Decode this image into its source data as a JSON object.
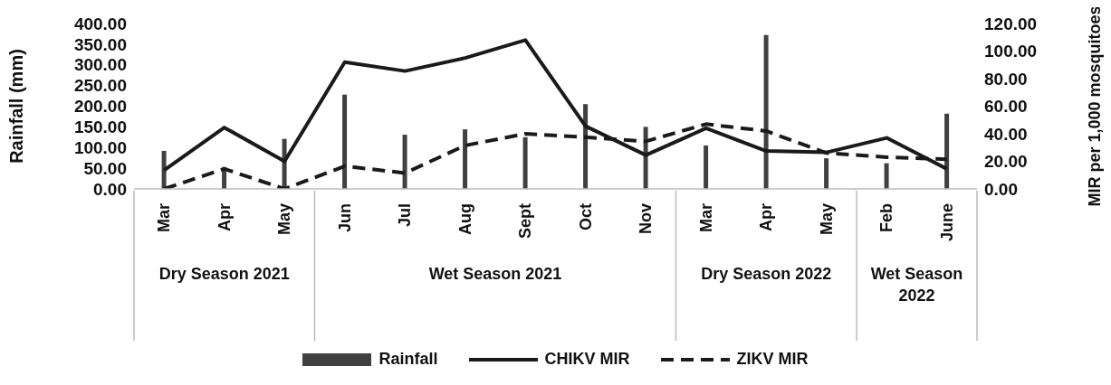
{
  "chart_data": {
    "type": "bar",
    "ylabel": "Rainfall (mm)",
    "y2label": "MIR per 1,000 mosquitoes",
    "categories": [
      "Mar",
      "Apr",
      "May",
      "Jun",
      "Jul",
      "Aug",
      "Sept",
      "Oct",
      "Nov",
      "Mar",
      "Apr",
      "May",
      "Feb",
      "June"
    ],
    "annotations": [
      "Dry Season 2021",
      "Wet Season 2021",
      "Dry Season 2022",
      "Wet Season 2022"
    ],
    "series": [
      {
        "name": "Rainfall",
        "color": "#404040",
        "values": [
          92,
          53,
          121,
          228,
          131,
          144,
          125,
          205,
          150,
          105,
          372,
          74,
          62,
          182
        ]
      },
      {
        "name": "CHIKV MIR",
        "type": "line",
        "axis": "y2",
        "color": "#1a1a1a",
        "line_style": "solid",
        "values": [
          13.5,
          44.5,
          20,
          92,
          85.5,
          95,
          108,
          45.5,
          24.5,
          44,
          27.5,
          26.5,
          37,
          14.5
        ]
      },
      {
        "name": "ZIKV MIR",
        "type": "line",
        "axis": "y2",
        "color": "#1a1a1a",
        "line_style": "dashed",
        "values": [
          0,
          14.5,
          0,
          16.5,
          11.5,
          31.5,
          40,
          37.5,
          34.5,
          47,
          42,
          26,
          23,
          21.5
        ]
      }
    ],
    "ylim": [
      0,
      400
    ],
    "yticks": [
      {
        "value": 0,
        "label": "0.00"
      },
      {
        "value": 50,
        "label": "50.00"
      },
      {
        "value": 100,
        "label": "100.00"
      },
      {
        "value": 150,
        "label": "150.00"
      },
      {
        "value": 200,
        "label": "200.00"
      },
      {
        "value": 250,
        "label": "250.00"
      },
      {
        "value": 300,
        "label": "300.00"
      },
      {
        "value": 350,
        "label": "350.00"
      },
      {
        "value": 400,
        "label": "400.00"
      }
    ],
    "y2lim": [
      0,
      120
    ],
    "y2ticks": [
      {
        "value": 0,
        "label": "0.00"
      },
      {
        "value": 20,
        "label": "20.00"
      },
      {
        "value": 40,
        "label": "40.00"
      },
      {
        "value": 60,
        "label": "60.00"
      },
      {
        "value": 80,
        "label": "80.00"
      },
      {
        "value": 100,
        "label": "100.00"
      },
      {
        "value": 120,
        "label": "120.00"
      }
    ],
    "grid": false,
    "legend": "bottom",
    "marker": "none"
  }
}
